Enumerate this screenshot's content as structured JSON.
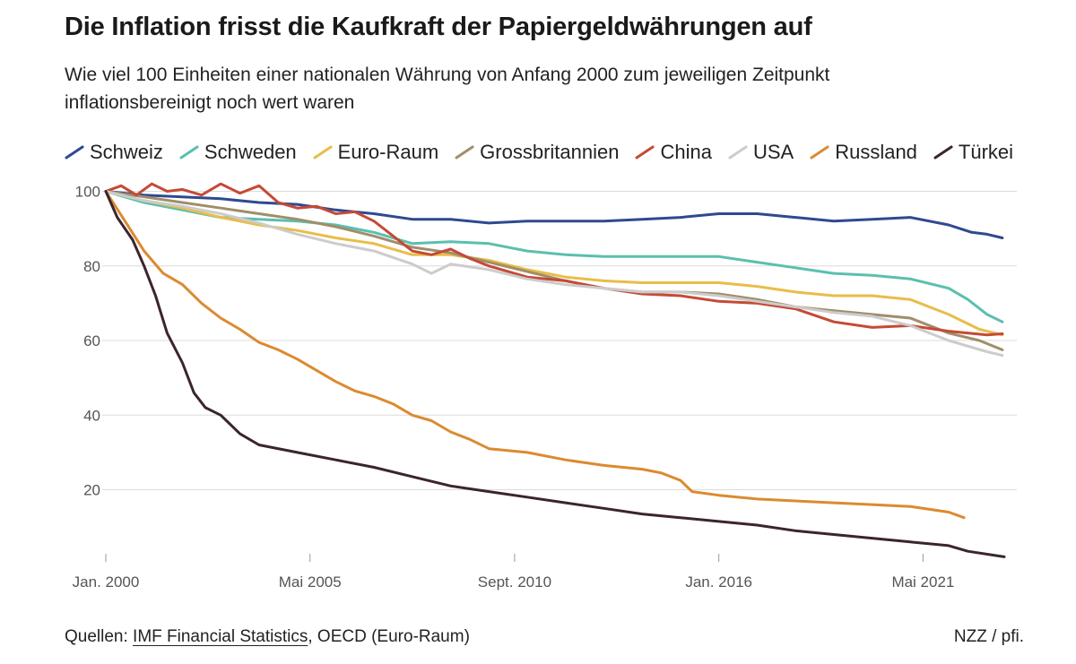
{
  "title": "Die Inflation frisst die Kaufkraft der Papiergeldwährungen auf",
  "subtitle": "Wie viel 100 Einheiten einer nationalen Währung von Anfang 2000 zum jeweiligen Zeitpunkt inflationsbereinigt noch wert waren",
  "footer": {
    "prefix": "Quellen: ",
    "link": "IMF Financial Statistics",
    "suffix": ", OECD (Euro-Raum)",
    "credit": "NZZ / pfi."
  },
  "chart_data": {
    "type": "line",
    "x_unit": "year",
    "xlim": [
      2000.0,
      2023.45
    ],
    "ylim": [
      0,
      105
    ],
    "yticks": [
      20,
      40,
      60,
      80,
      100
    ],
    "ytick_labels": [
      "20",
      "40",
      "60",
      "80",
      "100"
    ],
    "xticks": [
      {
        "value": 2000.0,
        "label": "Jan. 2000"
      },
      {
        "value": 2005.33,
        "label": "Mai 2005"
      },
      {
        "value": 2010.67,
        "label": "Sept. 2010"
      },
      {
        "value": 2016.0,
        "label": "Jan. 2016"
      },
      {
        "value": 2021.33,
        "label": "Mai 2021"
      }
    ],
    "grid": true,
    "legend_position": "top",
    "series": [
      {
        "name": "Schweiz",
        "color": "#2e4a8f",
        "points": [
          [
            2000,
            100
          ],
          [
            2001,
            99
          ],
          [
            2002,
            98.5
          ],
          [
            2003,
            98
          ],
          [
            2004,
            97
          ],
          [
            2005,
            96.5
          ],
          [
            2006,
            95
          ],
          [
            2007,
            94
          ],
          [
            2008,
            92.5
          ],
          [
            2009,
            92.5
          ],
          [
            2010,
            91.5
          ],
          [
            2011,
            92
          ],
          [
            2012,
            92
          ],
          [
            2013,
            92
          ],
          [
            2014,
            92.5
          ],
          [
            2015,
            93
          ],
          [
            2016,
            94
          ],
          [
            2017,
            94
          ],
          [
            2018,
            93
          ],
          [
            2019,
            92
          ],
          [
            2020,
            92.5
          ],
          [
            2021,
            93
          ],
          [
            2022,
            91
          ],
          [
            2022.6,
            89
          ],
          [
            2023,
            88.5
          ],
          [
            2023.4,
            87.5
          ]
        ]
      },
      {
        "name": "Schweden",
        "color": "#5bbfae",
        "points": [
          [
            2000,
            100
          ],
          [
            2001,
            97
          ],
          [
            2002,
            95
          ],
          [
            2003,
            93
          ],
          [
            2004,
            92.5
          ],
          [
            2005,
            92
          ],
          [
            2006,
            91
          ],
          [
            2007,
            89
          ],
          [
            2008,
            86
          ],
          [
            2009,
            86.5
          ],
          [
            2010,
            86
          ],
          [
            2011,
            84
          ],
          [
            2012,
            83
          ],
          [
            2013,
            82.5
          ],
          [
            2014,
            82.5
          ],
          [
            2015,
            82.5
          ],
          [
            2016,
            82.5
          ],
          [
            2017,
            81
          ],
          [
            2018,
            79.5
          ],
          [
            2019,
            78
          ],
          [
            2020,
            77.5
          ],
          [
            2021,
            76.5
          ],
          [
            2022,
            74
          ],
          [
            2022.5,
            71
          ],
          [
            2023,
            67
          ],
          [
            2023.4,
            65
          ]
        ]
      },
      {
        "name": "Euro-Raum",
        "color": "#e8bd4a",
        "points": [
          [
            2000,
            100
          ],
          [
            2001,
            97.5
          ],
          [
            2002,
            95.5
          ],
          [
            2003,
            93
          ],
          [
            2004,
            91
          ],
          [
            2005,
            89.5
          ],
          [
            2006,
            87.5
          ],
          [
            2007,
            86
          ],
          [
            2008,
            83
          ],
          [
            2009,
            83
          ],
          [
            2010,
            81.5
          ],
          [
            2011,
            79
          ],
          [
            2012,
            77
          ],
          [
            2013,
            76
          ],
          [
            2014,
            75.5
          ],
          [
            2015,
            75.5
          ],
          [
            2016,
            75.5
          ],
          [
            2017,
            74.5
          ],
          [
            2018,
            73
          ],
          [
            2019,
            72
          ],
          [
            2020,
            72
          ],
          [
            2021,
            71
          ],
          [
            2022,
            67
          ],
          [
            2022.8,
            63
          ],
          [
            2023.4,
            61.5
          ]
        ]
      },
      {
        "name": "Grossbritannien",
        "color": "#a08e6a",
        "points": [
          [
            2000,
            100
          ],
          [
            2001,
            98.5
          ],
          [
            2002,
            97
          ],
          [
            2003,
            95.5
          ],
          [
            2004,
            94
          ],
          [
            2005,
            92.5
          ],
          [
            2006,
            90.5
          ],
          [
            2007,
            88
          ],
          [
            2008,
            85
          ],
          [
            2009,
            83.5
          ],
          [
            2010,
            81
          ],
          [
            2011,
            78.5
          ],
          [
            2012,
            76
          ],
          [
            2013,
            74
          ],
          [
            2014,
            73
          ],
          [
            2015,
            73
          ],
          [
            2016,
            72.5
          ],
          [
            2017,
            71
          ],
          [
            2018,
            69
          ],
          [
            2019,
            68
          ],
          [
            2020,
            67
          ],
          [
            2021,
            66
          ],
          [
            2022,
            62
          ],
          [
            2022.8,
            60
          ],
          [
            2023.4,
            57.5
          ]
        ]
      },
      {
        "name": "China",
        "color": "#c54a36",
        "points": [
          [
            2000,
            100
          ],
          [
            2000.4,
            101.5
          ],
          [
            2000.8,
            99
          ],
          [
            2001.2,
            102
          ],
          [
            2001.6,
            100
          ],
          [
            2002,
            100.5
          ],
          [
            2002.5,
            99
          ],
          [
            2003,
            102
          ],
          [
            2003.5,
            99.5
          ],
          [
            2004,
            101.5
          ],
          [
            2004.5,
            97
          ],
          [
            2005,
            95.5
          ],
          [
            2005.5,
            96
          ],
          [
            2006,
            94
          ],
          [
            2006.5,
            94.5
          ],
          [
            2007,
            92
          ],
          [
            2007.5,
            88
          ],
          [
            2008,
            84
          ],
          [
            2008.5,
            83
          ],
          [
            2009,
            84.5
          ],
          [
            2009.5,
            82
          ],
          [
            2010,
            80
          ],
          [
            2011,
            77
          ],
          [
            2012,
            76
          ],
          [
            2013,
            74
          ],
          [
            2014,
            72.5
          ],
          [
            2015,
            72
          ],
          [
            2016,
            70.5
          ],
          [
            2017,
            70
          ],
          [
            2018,
            68.5
          ],
          [
            2019,
            65
          ],
          [
            2020,
            63.5
          ],
          [
            2021,
            64
          ],
          [
            2022,
            62.5
          ],
          [
            2023,
            61.5
          ],
          [
            2023.4,
            61.8
          ]
        ]
      },
      {
        "name": "USA",
        "color": "#cccccc",
        "points": [
          [
            2000,
            100
          ],
          [
            2001,
            97.5
          ],
          [
            2002,
            96
          ],
          [
            2003,
            94
          ],
          [
            2004,
            91.5
          ],
          [
            2005,
            88.5
          ],
          [
            2006,
            86
          ],
          [
            2007,
            84
          ],
          [
            2008,
            80.5
          ],
          [
            2008.5,
            78
          ],
          [
            2009,
            80.5
          ],
          [
            2010,
            79
          ],
          [
            2011,
            76.5
          ],
          [
            2012,
            75
          ],
          [
            2013,
            74
          ],
          [
            2014,
            73
          ],
          [
            2015,
            73
          ],
          [
            2016,
            72
          ],
          [
            2017,
            70.5
          ],
          [
            2018,
            69
          ],
          [
            2019,
            67.5
          ],
          [
            2020,
            66.5
          ],
          [
            2021,
            64
          ],
          [
            2022,
            60
          ],
          [
            2023,
            57
          ],
          [
            2023.4,
            56
          ]
        ]
      },
      {
        "name": "Russland",
        "color": "#dc8a30",
        "points": [
          [
            2000,
            100
          ],
          [
            2000.5,
            92
          ],
          [
            2001,
            84
          ],
          [
            2001.5,
            78
          ],
          [
            2002,
            75
          ],
          [
            2002.5,
            70
          ],
          [
            2003,
            66
          ],
          [
            2003.5,
            63
          ],
          [
            2004,
            59.5
          ],
          [
            2004.5,
            57.5
          ],
          [
            2005,
            55
          ],
          [
            2005.5,
            52
          ],
          [
            2006,
            49
          ],
          [
            2006.5,
            46.5
          ],
          [
            2007,
            45
          ],
          [
            2007.5,
            43
          ],
          [
            2008,
            40
          ],
          [
            2008.5,
            38.5
          ],
          [
            2009,
            35.5
          ],
          [
            2009.5,
            33.5
          ],
          [
            2010,
            31
          ],
          [
            2011,
            30
          ],
          [
            2012,
            28
          ],
          [
            2013,
            26.5
          ],
          [
            2014,
            25.5
          ],
          [
            2014.5,
            24.5
          ],
          [
            2015,
            22.5
          ],
          [
            2015.3,
            19.5
          ],
          [
            2016,
            18.5
          ],
          [
            2017,
            17.5
          ],
          [
            2018,
            17
          ],
          [
            2019,
            16.5
          ],
          [
            2020,
            16
          ],
          [
            2021,
            15.5
          ],
          [
            2022,
            14
          ],
          [
            2022.4,
            12.5
          ]
        ]
      },
      {
        "name": "Türkei",
        "color": "#3b2430",
        "points": [
          [
            2000,
            100
          ],
          [
            2000.3,
            93
          ],
          [
            2000.7,
            87
          ],
          [
            2001,
            80
          ],
          [
            2001.3,
            72
          ],
          [
            2001.6,
            62
          ],
          [
            2002,
            54
          ],
          [
            2002.3,
            46
          ],
          [
            2002.6,
            42
          ],
          [
            2003,
            40
          ],
          [
            2003.5,
            35
          ],
          [
            2004,
            32
          ],
          [
            2005,
            30
          ],
          [
            2006,
            28
          ],
          [
            2007,
            26
          ],
          [
            2008,
            23.5
          ],
          [
            2009,
            21
          ],
          [
            2010,
            19.5
          ],
          [
            2011,
            18
          ],
          [
            2012,
            16.5
          ],
          [
            2013,
            15
          ],
          [
            2014,
            13.5
          ],
          [
            2015,
            12.5
          ],
          [
            2016,
            11.5
          ],
          [
            2017,
            10.5
          ],
          [
            2018,
            9
          ],
          [
            2019,
            8
          ],
          [
            2020,
            7
          ],
          [
            2021,
            6
          ],
          [
            2022,
            5
          ],
          [
            2022.5,
            3.5
          ],
          [
            2023.45,
            2
          ]
        ]
      }
    ]
  }
}
